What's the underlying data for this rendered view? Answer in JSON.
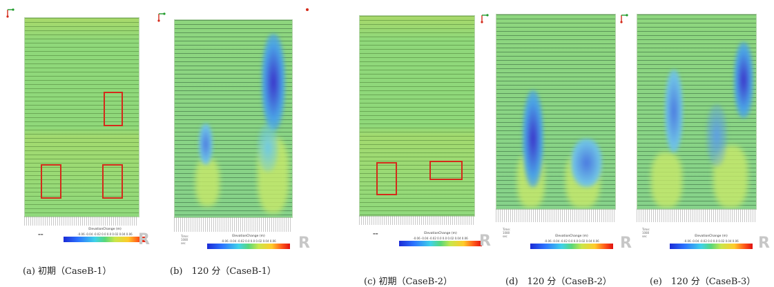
{
  "legend_title": "ElevationChange (m)",
  "legend_ticks": "-0.06 -0.04 -0.02 0.0  0.0  0.02 0.04 0.06",
  "logo": "R",
  "scale_text": "Time: 1080 sec",
  "panels": [
    {
      "caption": "(a) 初期（CaseB-1）"
    },
    {
      "caption": "(b)　120 分（CaseB-1）"
    },
    {
      "caption": "(c) 初期（CaseB-2）"
    },
    {
      "caption": "(d)　120 分（CaseB-2）"
    },
    {
      "caption": "(e)　120 分（CaseB-3）"
    }
  ],
  "colors": {
    "scour_deep": "#3a2fc9",
    "scour_mid": "#4aa3e6",
    "base_green": "#8fd87a",
    "deposit": "#c8e96a",
    "box_red": "#d42a1a"
  }
}
